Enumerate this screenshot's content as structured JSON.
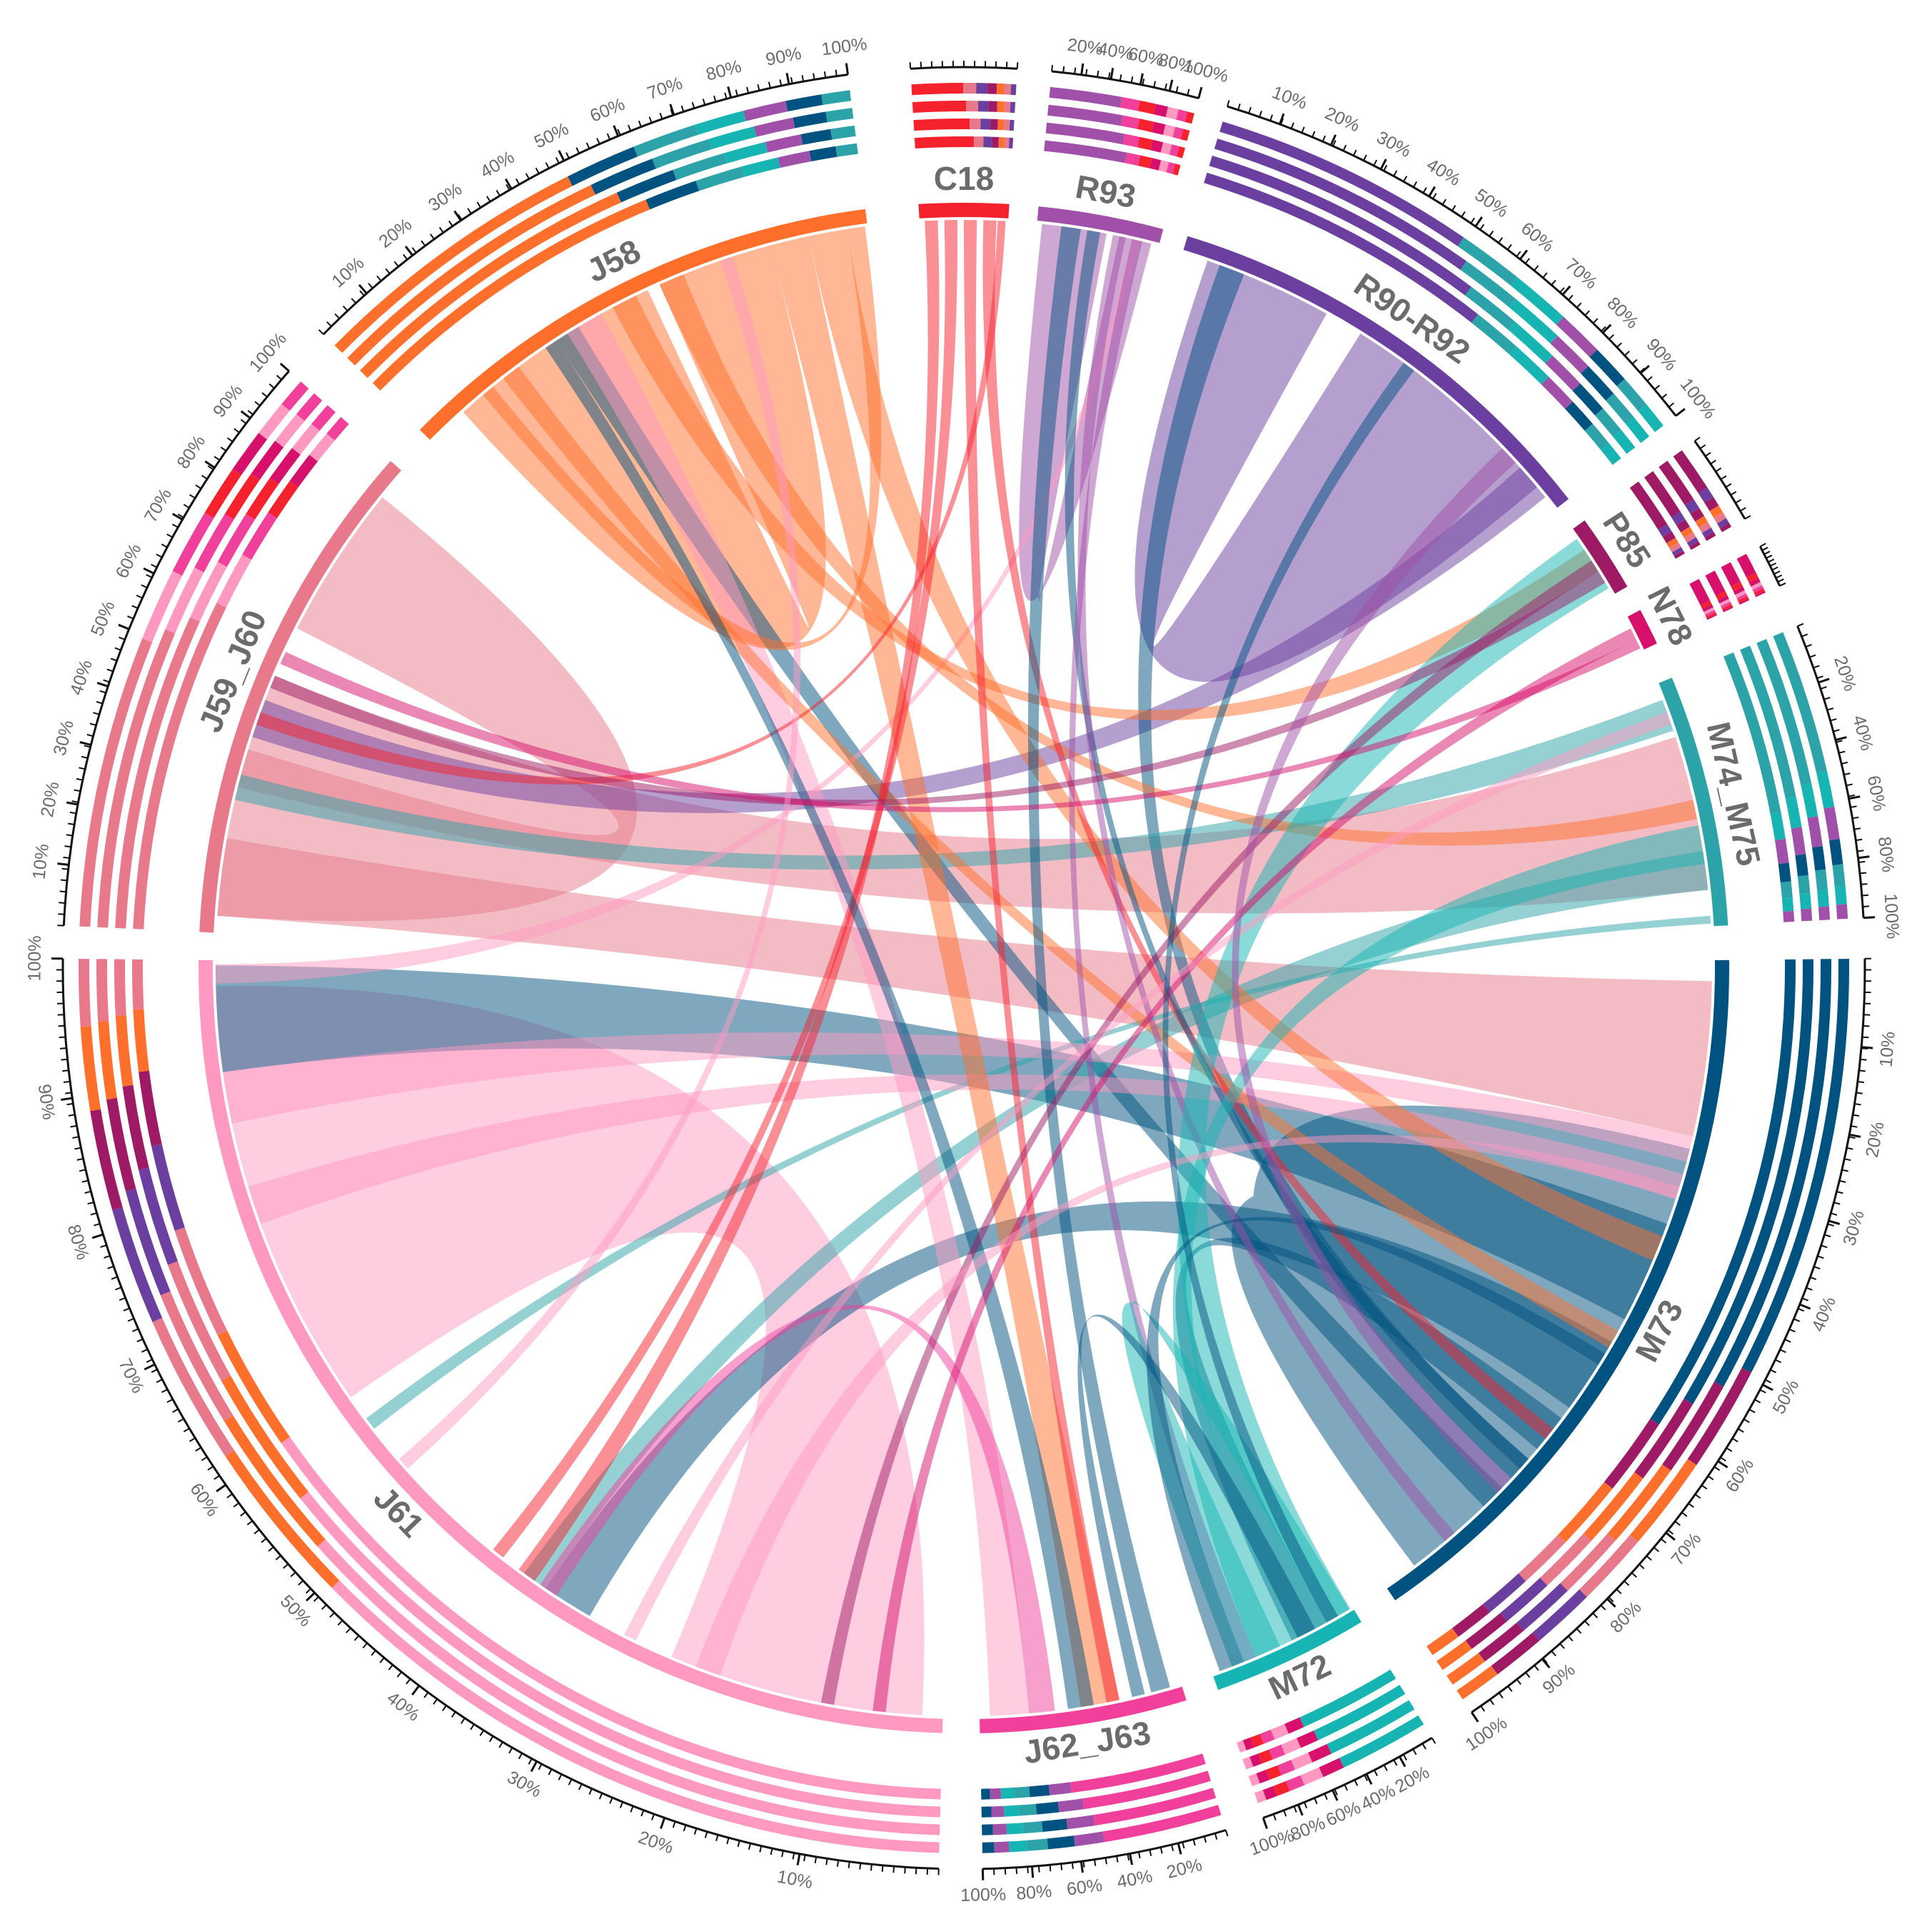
{
  "diagram": {
    "type": "chord",
    "colors": {
      "C18": "#f5222d",
      "R93": "#a050a8",
      "R90-R92": "#6b3fa0",
      "P85": "#9e1a64",
      "N78": "#d6106b",
      "M74_M75": "#2ba3a8",
      "M73": "#005280",
      "M72": "#16b5b3",
      "J62_J63": "#f0409c",
      "J61": "#ff99c2",
      "J59_J60": "#e8798a",
      "J58": "#ff6f2c"
    },
    "segments": [
      {
        "id": "C18",
        "label": "C18",
        "start": -3.4,
        "end": 3.4
      },
      {
        "id": "R93",
        "label": "R93",
        "start": 5.6,
        "end": 15.1
      },
      {
        "id": "R90-R92",
        "label": "R90-R92",
        "start": 17.0,
        "end": 52.2
      },
      {
        "id": "P85",
        "label": "P85",
        "start": 54.2,
        "end": 60.1
      },
      {
        "id": "N78",
        "label": "N78",
        "start": 62.1,
        "end": 64.9
      },
      {
        "id": "M74_M75",
        "label": "M74_M75",
        "start": 67.7,
        "end": 86.8
      },
      {
        "id": "M73",
        "label": "M73",
        "start": 89.4,
        "end": 145.7
      },
      {
        "id": "M72",
        "label": "M72",
        "start": 148.7,
        "end": 160.6
      },
      {
        "id": "J62_J63",
        "label": "J62_J63",
        "start": 163.1,
        "end": 178.8
      },
      {
        "id": "J61",
        "label": "J61",
        "start": 181.6,
        "end": 270.6
      },
      {
        "id": "J59_J60",
        "label": "J59_J60",
        "start": 272.7,
        "end": 311.5
      },
      {
        "id": "J58",
        "label": "J58",
        "start": 314.7,
        "end": 352.6
      }
    ],
    "ribbons": [
      {
        "from": "J61",
        "a": [
          235.0,
          268.6
        ],
        "to": "J61",
        "b": [
          183.2,
          203.0
        ],
        "color": "J61"
      },
      {
        "from": "J59_J60",
        "a": [
          297.0,
          309.0
        ],
        "to": "J59_J60",
        "b": [
          274.0,
          287.0
        ],
        "color": "J59_J60"
      },
      {
        "from": "J59_J60",
        "a": [
          284.0,
          293.0
        ],
        "to": "M74_M75",
        "b": [
          72.0,
          84.0
        ],
        "color": "J59_J60"
      },
      {
        "from": "J59_J60",
        "a": [
          274.0,
          280.0
        ],
        "to": "M73",
        "b": [
          91.0,
          103.0
        ],
        "color": "J59_J60"
      },
      {
        "from": "J59_J60",
        "a": [
          288.0,
          291.0
        ],
        "to": "R90-R92",
        "b": [
          48.0,
          51.0
        ],
        "color": "R90-R92"
      },
      {
        "from": "R90-R92",
        "a": [
          19.0,
          29.0
        ],
        "to": "R90-R92",
        "b": [
          32.0,
          50.0
        ],
        "color": "R90-R92"
      },
      {
        "from": "R93",
        "a": [
          6.0,
          11.0
        ],
        "to": "R93",
        "b": [
          12.0,
          14.5
        ],
        "color": "R93"
      },
      {
        "from": "J58",
        "a": [
          320.0,
          335.0
        ],
        "to": "J58",
        "b": [
          336.0,
          345.0
        ],
        "color": "J58"
      },
      {
        "from": "M73",
        "a": [
          104.0,
          143.0
        ],
        "to": "M73",
        "b": [
          118.0,
          140.0
        ],
        "color": "M73"
      },
      {
        "from": "M73",
        "a": [
          110.0,
          118.0
        ],
        "to": "J61",
        "b": [
          262.0,
          270.2
        ],
        "color": "M73"
      },
      {
        "from": "M73",
        "a": [
          120.0,
          126.0
        ],
        "to": "J61",
        "b": [
          210.0,
          214.0
        ],
        "color": "M73"
      },
      {
        "from": "M73",
        "a": [
          127.0,
          130.0
        ],
        "to": "M72",
        "b": [
          151.0,
          154.0
        ],
        "color": "M73"
      },
      {
        "from": "M73",
        "a": [
          131.0,
          133.0
        ],
        "to": "R90-R92",
        "b": [
          20.0,
          22.0
        ],
        "color": "M73"
      },
      {
        "from": "M73",
        "a": [
          134.0,
          136.0
        ],
        "to": "J58",
        "b": [
          327.0,
          329.0
        ],
        "color": "M73"
      },
      {
        "from": "M74_M75",
        "a": [
          69.0,
          71.5
        ],
        "to": "J59_J60",
        "b": [
          283.0,
          285.0
        ],
        "color": "M74_M75"
      },
      {
        "from": "M74_M75",
        "a": [
          81.0,
          84.0
        ],
        "to": "J61",
        "b": [
          214.0,
          216.0
        ],
        "color": "M74_M75"
      },
      {
        "from": "M74_M75",
        "a": [
          86.0,
          86.6
        ],
        "to": "J61",
        "b": [
          232.0,
          233.0
        ],
        "color": "M74_M75"
      },
      {
        "from": "J61",
        "a": [
          258.0,
          262.0
        ],
        "to": "M73",
        "b": [
          103.0,
          105.0
        ],
        "color": "J61"
      },
      {
        "from": "J61",
        "a": [
          250.0,
          253.0
        ],
        "to": "M73",
        "b": [
          106.0,
          108.0
        ],
        "color": "J61"
      },
      {
        "from": "J61",
        "a": [
          268.8,
          270.3
        ],
        "to": "R93",
        "b": [
          13.0,
          13.6
        ],
        "color": "J61"
      },
      {
        "from": "J58",
        "a": [
          328.0,
          331.0
        ],
        "to": "J62_J63",
        "b": [
          175.0,
          178.0
        ],
        "color": "J61"
      },
      {
        "from": "J58",
        "a": [
          345.0,
          348.0
        ],
        "to": "J62_J63",
        "b": [
          168.0,
          171.0
        ],
        "color": "J58"
      },
      {
        "from": "J58",
        "a": [
          348.0,
          351.0
        ],
        "to": "M73",
        "b": [
          111.0,
          113.0
        ],
        "color": "J58"
      },
      {
        "from": "J58",
        "a": [
          318.0,
          321.0
        ],
        "to": "J58",
        "b": [
          351.0,
          352.4
        ],
        "color": "J58"
      },
      {
        "from": "J58",
        "a": [
          332.0,
          334.0
        ],
        "to": "P85",
        "b": [
          56.0,
          58.0
        ],
        "color": "J58"
      },
      {
        "from": "J58",
        "a": [
          336.0,
          338.0
        ],
        "to": "M74_M75",
        "b": [
          77.0,
          78.5
        ],
        "color": "J58"
      },
      {
        "from": "J58",
        "a": [
          322.0,
          323.5
        ],
        "to": "M73",
        "b": [
          119.0,
          120.5
        ],
        "color": "J58"
      },
      {
        "from": "C18",
        "a": [
          -3.0,
          -2.0
        ],
        "to": "J61",
        "b": [
          215.0,
          216.5
        ],
        "color": "C18"
      },
      {
        "from": "C18",
        "a": [
          -1.5,
          -0.5
        ],
        "to": "J61",
        "b": [
          218.0,
          219.0
        ],
        "color": "C18"
      },
      {
        "from": "C18",
        "a": [
          0.0,
          1.0
        ],
        "to": "J62_J63",
        "b": [
          168.0,
          169.0
        ],
        "color": "C18"
      },
      {
        "from": "C18",
        "a": [
          1.5,
          2.5
        ],
        "to": "M73",
        "b": [
          128.0,
          129.0
        ],
        "color": "C18"
      },
      {
        "from": "C18",
        "a": [
          2.6,
          3.2
        ],
        "to": "J59_J60",
        "b": [
          289.0,
          290.0
        ],
        "color": "C18"
      },
      {
        "from": "R93",
        "a": [
          7.5,
          9.0
        ],
        "to": "J62_J63",
        "b": [
          164.0,
          165.5
        ],
        "color": "M73"
      },
      {
        "from": "R93",
        "a": [
          9.5,
          10.5
        ],
        "to": "M73",
        "b": [
          131.0,
          132.0
        ],
        "color": "M73"
      },
      {
        "from": "R93",
        "a": [
          11.5,
          12.5
        ],
        "to": "M73",
        "b": [
          139.0,
          140.0
        ],
        "color": "R93"
      },
      {
        "from": "R93",
        "a": [
          13.0,
          13.8
        ],
        "to": "M72",
        "b": [
          157.0,
          158.0
        ],
        "color": "R93"
      },
      {
        "from": "J58",
        "a": [
          326.0,
          327.0
        ],
        "to": "J62_J63",
        "b": [
          170.0,
          172.0
        ],
        "color": "M73"
      },
      {
        "from": "M72",
        "a": [
          148.9,
          154.0
        ],
        "to": "P85",
        "b": [
          55.0,
          59.5
        ],
        "color": "M72"
      },
      {
        "from": "M72",
        "a": [
          154.0,
          157.0
        ],
        "to": "M74_M75",
        "b": [
          79.0,
          82.0
        ],
        "color": "M72"
      },
      {
        "from": "M72",
        "a": [
          149.0,
          151.0
        ],
        "to": "M72",
        "b": [
          155.0,
          159.0
        ],
        "color": "M72"
      },
      {
        "from": "M72",
        "a": [
          158.0,
          160.0
        ],
        "to": "M73",
        "b": [
          121.0,
          122.0
        ],
        "color": "M73"
      },
      {
        "from": "J62_J63",
        "a": [
          173.0,
          175.0
        ],
        "to": "J61",
        "b": [
          213.0,
          214.5
        ],
        "color": "J62_J63"
      },
      {
        "from": "J62_J63",
        "a": [
          166.0,
          167.0
        ],
        "to": "M72",
        "b": [
          152.0,
          153.5
        ],
        "color": "M73"
      },
      {
        "from": "J61",
        "a": [
          186.0,
          187.0
        ],
        "to": "N78",
        "b": [
          63.0,
          64.0
        ],
        "color": "N78"
      },
      {
        "from": "J61",
        "a": [
          190.0,
          191.0
        ],
        "to": "P85",
        "b": [
          57.0,
          58.0
        ],
        "color": "P85"
      },
      {
        "from": "J61",
        "a": [
          199.0,
          201.0
        ],
        "to": "M73",
        "b": [
          107.0,
          108.0
        ],
        "color": "J61"
      },
      {
        "from": "J61",
        "a": [
          206.0,
          207.0
        ],
        "to": "M74_M75",
        "b": [
          70.0,
          71.0
        ],
        "color": "J61"
      },
      {
        "from": "J59_J60",
        "a": [
          292.0,
          293.0
        ],
        "to": "P85",
        "b": [
          58.0,
          59.0
        ],
        "color": "P85"
      },
      {
        "from": "J59_J60",
        "a": [
          294.0,
          295.0
        ],
        "to": "N78",
        "b": [
          64.0,
          64.7
        ],
        "color": "N78"
      },
      {
        "from": "R90-R92",
        "a": [
          46.0,
          47.5
        ],
        "to": "M73",
        "b": [
          133.0,
          134.5
        ],
        "color": "R93"
      },
      {
        "from": "R90-R92",
        "a": [
          36.0,
          37.0
        ],
        "to": "M72",
        "b": [
          150.0,
          151.0
        ],
        "color": "M73"
      },
      {
        "from": "J61",
        "a": [
          228.0,
          229.0
        ],
        "to": "J58",
        "b": [
          341.0,
          342.0
        ],
        "color": "J61"
      }
    ],
    "outer_tracks": [
      {
        "segment": "C18",
        "ticks": []
      },
      {
        "segment": "R93",
        "ticks": [
          "20%",
          "40%",
          "60%",
          "80%",
          "100%"
        ]
      },
      {
        "segment": "R90-R92",
        "ticks": [
          "10%",
          "20%",
          "30%",
          "40%",
          "50%",
          "60%",
          "70%",
          "80%",
          "90%",
          "100%"
        ]
      },
      {
        "segment": "P85",
        "ticks": []
      },
      {
        "segment": "N78",
        "ticks": []
      },
      {
        "segment": "M74_M75",
        "ticks": [
          "20%",
          "40%",
          "60%",
          "80%",
          "100%"
        ]
      },
      {
        "segment": "M73",
        "ticks": [
          "10%",
          "20%",
          "30%",
          "40%",
          "50%",
          "60%",
          "70%",
          "80%",
          "90%",
          "100%"
        ]
      },
      {
        "segment": "M72",
        "ticks": [
          "20%",
          "40%",
          "60%",
          "80%",
          "100%"
        ]
      },
      {
        "segment": "J62_J63",
        "ticks": [
          "20%",
          "40%",
          "60%",
          "80%",
          "100%"
        ]
      },
      {
        "segment": "J61",
        "ticks": [
          "10%",
          "20%",
          "30%",
          "40%",
          "50%",
          "60%",
          "70%",
          "80%",
          "90%",
          "100%"
        ]
      },
      {
        "segment": "J59_J60",
        "ticks": [
          "10%",
          "20%",
          "30%",
          "40%",
          "50%",
          "60%",
          "70%",
          "80%",
          "90%",
          "100%"
        ]
      },
      {
        "segment": "J58",
        "ticks": [
          "10%",
          "20%",
          "30%",
          "40%",
          "50%",
          "60%",
          "70%",
          "80%",
          "90%",
          "100%"
        ]
      }
    ]
  }
}
